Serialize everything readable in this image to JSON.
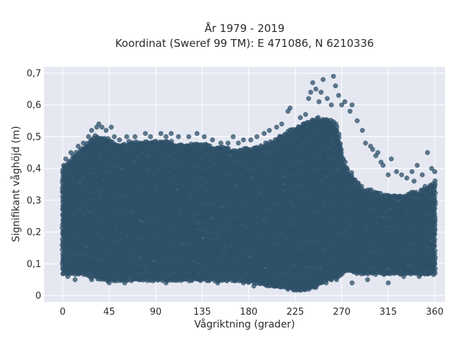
{
  "chart_data": {
    "type": "scatter",
    "title": "År 1979 - 2019",
    "subtitle": "Koordinat (Sweref 99 TM): E 471086, N 6210336",
    "xlabel": "Vågriktning (grader)",
    "ylabel": "Signifikant våghöjd (m)",
    "xlim": [
      -18,
      370
    ],
    "ylim": [
      -0.02,
      0.72
    ],
    "xticks": [
      0,
      45,
      90,
      135,
      180,
      225,
      270,
      315,
      360
    ],
    "xtick_labels": [
      "0",
      "45",
      "90",
      "135",
      "180",
      "225",
      "270",
      "315",
      "360"
    ],
    "yticks": [
      0,
      0.1,
      0.2,
      0.3,
      0.4,
      0.5,
      0.6,
      0.7
    ],
    "ytick_labels": [
      "0",
      "0,1",
      "0,2",
      "0,3",
      "0,4",
      "0,5",
      "0,6",
      "0,7"
    ],
    "grid": true,
    "colors": {
      "marker": "#2e5068",
      "plot_background": "#e5e8f1",
      "grid": "#ffffff"
    },
    "density_envelope": [
      {
        "x": 0,
        "ymin": 0.07,
        "ymax": 0.4
      },
      {
        "x": 10,
        "ymin": 0.07,
        "ymax": 0.44
      },
      {
        "x": 20,
        "ymin": 0.07,
        "ymax": 0.47
      },
      {
        "x": 30,
        "ymin": 0.06,
        "ymax": 0.5
      },
      {
        "x": 40,
        "ymin": 0.05,
        "ymax": 0.5
      },
      {
        "x": 50,
        "ymin": 0.05,
        "ymax": 0.48
      },
      {
        "x": 60,
        "ymin": 0.05,
        "ymax": 0.48
      },
      {
        "x": 75,
        "ymin": 0.05,
        "ymax": 0.49
      },
      {
        "x": 90,
        "ymin": 0.05,
        "ymax": 0.49
      },
      {
        "x": 110,
        "ymin": 0.05,
        "ymax": 0.48
      },
      {
        "x": 130,
        "ymin": 0.05,
        "ymax": 0.48
      },
      {
        "x": 150,
        "ymin": 0.05,
        "ymax": 0.47
      },
      {
        "x": 170,
        "ymin": 0.05,
        "ymax": 0.46
      },
      {
        "x": 190,
        "ymin": 0.04,
        "ymax": 0.47
      },
      {
        "x": 205,
        "ymin": 0.03,
        "ymax": 0.49
      },
      {
        "x": 215,
        "ymin": 0.03,
        "ymax": 0.51
      },
      {
        "x": 225,
        "ymin": 0.02,
        "ymax": 0.53
      },
      {
        "x": 235,
        "ymin": 0.02,
        "ymax": 0.55
      },
      {
        "x": 245,
        "ymin": 0.03,
        "ymax": 0.56
      },
      {
        "x": 255,
        "ymin": 0.05,
        "ymax": 0.56
      },
      {
        "x": 265,
        "ymin": 0.06,
        "ymax": 0.54
      },
      {
        "x": 270,
        "ymin": 0.07,
        "ymax": 0.46
      },
      {
        "x": 275,
        "ymin": 0.08,
        "ymax": 0.4
      },
      {
        "x": 290,
        "ymin": 0.07,
        "ymax": 0.34
      },
      {
        "x": 310,
        "ymin": 0.07,
        "ymax": 0.32
      },
      {
        "x": 330,
        "ymin": 0.07,
        "ymax": 0.32
      },
      {
        "x": 345,
        "ymin": 0.07,
        "ymax": 0.33
      },
      {
        "x": 360,
        "ymin": 0.07,
        "ymax": 0.36
      }
    ],
    "outliers": [
      [
        1,
        0.41
      ],
      [
        3,
        0.43
      ],
      [
        8,
        0.45
      ],
      [
        15,
        0.47
      ],
      [
        20,
        0.48
      ],
      [
        25,
        0.5
      ],
      [
        28,
        0.52
      ],
      [
        33,
        0.53
      ],
      [
        35,
        0.54
      ],
      [
        38,
        0.53
      ],
      [
        42,
        0.52
      ],
      [
        47,
        0.53
      ],
      [
        50,
        0.5
      ],
      [
        55,
        0.49
      ],
      [
        62,
        0.5
      ],
      [
        70,
        0.5
      ],
      [
        80,
        0.51
      ],
      [
        85,
        0.5
      ],
      [
        95,
        0.51
      ],
      [
        100,
        0.5
      ],
      [
        105,
        0.51
      ],
      [
        112,
        0.5
      ],
      [
        122,
        0.5
      ],
      [
        130,
        0.51
      ],
      [
        137,
        0.5
      ],
      [
        145,
        0.49
      ],
      [
        153,
        0.48
      ],
      [
        160,
        0.48
      ],
      [
        165,
        0.5
      ],
      [
        170,
        0.48
      ],
      [
        175,
        0.49
      ],
      [
        182,
        0.49
      ],
      [
        188,
        0.5
      ],
      [
        195,
        0.51
      ],
      [
        200,
        0.52
      ],
      [
        207,
        0.53
      ],
      [
        212,
        0.54
      ],
      [
        218,
        0.58
      ],
      [
        220,
        0.59
      ],
      [
        226,
        0.52
      ],
      [
        230,
        0.56
      ],
      [
        235,
        0.57
      ],
      [
        238,
        0.62
      ],
      [
        240,
        0.64
      ],
      [
        242,
        0.67
      ],
      [
        245,
        0.65
      ],
      [
        248,
        0.61
      ],
      [
        250,
        0.64
      ],
      [
        252,
        0.68
      ],
      [
        256,
        0.62
      ],
      [
        260,
        0.6
      ],
      [
        262,
        0.69
      ],
      [
        264,
        0.66
      ],
      [
        267,
        0.63
      ],
      [
        270,
        0.6
      ],
      [
        273,
        0.61
      ],
      [
        278,
        0.58
      ],
      [
        280,
        0.6
      ],
      [
        285,
        0.55
      ],
      [
        290,
        0.52
      ],
      [
        293,
        0.48
      ],
      [
        298,
        0.47
      ],
      [
        303,
        0.44
      ],
      [
        308,
        0.42
      ],
      [
        310,
        0.41
      ],
      [
        318,
        0.43
      ],
      [
        323,
        0.39
      ],
      [
        328,
        0.38
      ],
      [
        333,
        0.37
      ],
      [
        338,
        0.39
      ],
      [
        343,
        0.41
      ],
      [
        348,
        0.38
      ],
      [
        353,
        0.45
      ],
      [
        357,
        0.4
      ],
      [
        360,
        0.39
      ],
      [
        300,
        0.46
      ],
      [
        305,
        0.45
      ],
      [
        315,
        0.38
      ],
      [
        340,
        0.36
      ],
      [
        5,
        0.06
      ],
      [
        12,
        0.05
      ],
      [
        28,
        0.05
      ],
      [
        45,
        0.04
      ],
      [
        60,
        0.04
      ],
      [
        100,
        0.04
      ],
      [
        150,
        0.04
      ],
      [
        175,
        0.04
      ],
      [
        185,
        0.03
      ],
      [
        198,
        0.04
      ],
      [
        205,
        0.03
      ],
      [
        212,
        0.03
      ],
      [
        218,
        0.02
      ],
      [
        223,
        0.02
      ],
      [
        228,
        0.02
      ],
      [
        233,
        0.03
      ],
      [
        238,
        0.02
      ],
      [
        243,
        0.03
      ],
      [
        250,
        0.04
      ],
      [
        255,
        0.04
      ],
      [
        260,
        0.05
      ],
      [
        265,
        0.05
      ],
      [
        280,
        0.04
      ],
      [
        295,
        0.05
      ],
      [
        315,
        0.04
      ],
      [
        330,
        0.06
      ],
      [
        345,
        0.06
      ]
    ]
  }
}
